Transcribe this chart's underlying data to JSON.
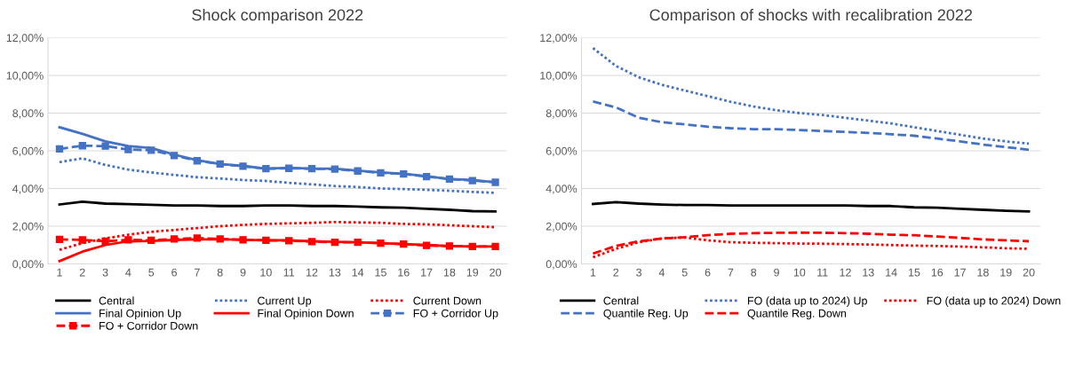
{
  "chart_data": [
    {
      "type": "line",
      "title": "Shock comparison 2022",
      "categories": [
        "1",
        "2",
        "3",
        "4",
        "5",
        "6",
        "7",
        "8",
        "9",
        "10",
        "11",
        "12",
        "13",
        "14",
        "15",
        "16",
        "17",
        "18",
        "19",
        "20"
      ],
      "ylim": [
        0,
        12
      ],
      "yticks": [
        {
          "value": 0,
          "label": "0,00%"
        },
        {
          "value": 2,
          "label": "2,00%"
        },
        {
          "value": 4,
          "label": "4,00%"
        },
        {
          "value": 6,
          "label": "6,00%"
        },
        {
          "value": 8,
          "label": "8,00%"
        },
        {
          "value": 10,
          "label": "10,00%"
        },
        {
          "value": 12,
          "label": "12,00%"
        }
      ],
      "grid": "y",
      "legend": "bottom",
      "series": [
        {
          "name": "Central",
          "color": "#000000",
          "line_style": "solid",
          "marker": "none",
          "values": [
            3.15,
            3.3,
            3.2,
            3.17,
            3.14,
            3.1,
            3.1,
            3.07,
            3.07,
            3.1,
            3.1,
            3.07,
            3.07,
            3.04,
            3.0,
            2.98,
            2.92,
            2.87,
            2.8,
            2.78
          ]
        },
        {
          "name": "Current Up",
          "color": "#4472c4",
          "line_style": "dotted",
          "marker": "none",
          "values": [
            5.4,
            5.6,
            5.25,
            5.0,
            4.85,
            4.72,
            4.6,
            4.53,
            4.45,
            4.4,
            4.3,
            4.22,
            4.13,
            4.08,
            4.0,
            3.97,
            3.93,
            3.88,
            3.82,
            3.77
          ]
        },
        {
          "name": "Current Down",
          "color": "#ff0000",
          "line_style": "dotted",
          "marker": "none",
          "values": [
            0.75,
            1.1,
            1.35,
            1.55,
            1.7,
            1.8,
            1.9,
            2.0,
            2.07,
            2.12,
            2.15,
            2.18,
            2.22,
            2.2,
            2.18,
            2.12,
            2.1,
            2.05,
            2.0,
            1.95
          ]
        },
        {
          "name": "Final Opinion Up",
          "color": "#4472c4",
          "line_style": "solid",
          "marker": "none",
          "values": [
            7.25,
            6.9,
            6.5,
            6.25,
            6.15,
            5.8,
            5.5,
            5.3,
            5.2,
            5.05,
            5.1,
            5.05,
            5.05,
            4.95,
            4.85,
            4.78,
            4.65,
            4.5,
            4.45,
            4.33
          ]
        },
        {
          "name": "Final Opinion Down",
          "color": "#ff0000",
          "line_style": "solid",
          "marker": "none",
          "values": [
            0.15,
            0.65,
            1.0,
            1.2,
            1.22,
            1.27,
            1.3,
            1.3,
            1.28,
            1.25,
            1.25,
            1.2,
            1.17,
            1.15,
            1.1,
            1.05,
            1.0,
            0.95,
            0.92,
            0.92
          ]
        },
        {
          "name": "FO + Corridor Up",
          "color": "#4472c4",
          "line_style": "dashed",
          "marker": "square",
          "values": [
            6.1,
            6.27,
            6.25,
            6.07,
            6.03,
            5.75,
            5.47,
            5.3,
            5.18,
            5.05,
            5.07,
            5.05,
            5.03,
            4.93,
            4.83,
            4.77,
            4.63,
            4.5,
            4.42,
            4.33
          ]
        },
        {
          "name": "FO + Corridor Down",
          "color": "#ff0000",
          "line_style": "dashed",
          "marker": "square",
          "values": [
            1.3,
            1.27,
            1.2,
            1.28,
            1.25,
            1.32,
            1.37,
            1.32,
            1.28,
            1.25,
            1.23,
            1.18,
            1.15,
            1.15,
            1.1,
            1.05,
            0.98,
            0.95,
            0.92,
            0.92
          ]
        }
      ]
    },
    {
      "type": "line",
      "title": "Comparison of shocks with recalibration 2022",
      "categories": [
        "1",
        "2",
        "3",
        "4",
        "5",
        "6",
        "7",
        "8",
        "9",
        "10",
        "11",
        "12",
        "13",
        "14",
        "15",
        "16",
        "17",
        "18",
        "19",
        "20"
      ],
      "ylim": [
        0,
        12
      ],
      "yticks": [
        {
          "value": 0,
          "label": "0,00%"
        },
        {
          "value": 2,
          "label": "2,00%"
        },
        {
          "value": 4,
          "label": "4,00%"
        },
        {
          "value": 6,
          "label": "6,00%"
        },
        {
          "value": 8,
          "label": "8,00%"
        },
        {
          "value": 10,
          "label": "10,00%"
        },
        {
          "value": 12,
          "label": "12,00%"
        }
      ],
      "grid": "y",
      "legend": "bottom",
      "series": [
        {
          "name": "Central",
          "color": "#000000",
          "line_style": "solid",
          "marker": "none",
          "values": [
            3.18,
            3.28,
            3.2,
            3.15,
            3.12,
            3.12,
            3.1,
            3.1,
            3.1,
            3.1,
            3.1,
            3.1,
            3.07,
            3.07,
            3.0,
            2.98,
            2.92,
            2.87,
            2.82,
            2.78
          ]
        },
        {
          "name": "FO (data up to 2024) Up",
          "color": "#4472c4",
          "line_style": "dotted",
          "marker": "none",
          "values": [
            11.45,
            10.5,
            9.9,
            9.5,
            9.2,
            8.9,
            8.6,
            8.35,
            8.15,
            8.0,
            7.9,
            7.75,
            7.6,
            7.45,
            7.25,
            7.05,
            6.85,
            6.65,
            6.5,
            6.38
          ]
        },
        {
          "name": "FO (data up to 2024) Down",
          "color": "#ff0000",
          "line_style": "dotted",
          "marker": "none",
          "values": [
            0.35,
            0.8,
            1.15,
            1.35,
            1.4,
            1.25,
            1.15,
            1.12,
            1.1,
            1.08,
            1.07,
            1.05,
            1.03,
            1.0,
            0.97,
            0.95,
            0.92,
            0.88,
            0.83,
            0.8
          ]
        },
        {
          "name": "Quantile Reg. Up",
          "color": "#4472c4",
          "line_style": "dashed",
          "marker": "none",
          "values": [
            8.62,
            8.3,
            7.75,
            7.52,
            7.4,
            7.28,
            7.2,
            7.15,
            7.15,
            7.1,
            7.05,
            7.0,
            6.95,
            6.88,
            6.8,
            6.65,
            6.5,
            6.33,
            6.2,
            6.05
          ]
        },
        {
          "name": "Quantile Reg. Down",
          "color": "#ff0000",
          "line_style": "dashed",
          "marker": "none",
          "values": [
            0.55,
            0.95,
            1.2,
            1.35,
            1.42,
            1.52,
            1.6,
            1.63,
            1.65,
            1.66,
            1.65,
            1.63,
            1.6,
            1.55,
            1.52,
            1.45,
            1.38,
            1.3,
            1.25,
            1.2
          ]
        }
      ]
    }
  ]
}
